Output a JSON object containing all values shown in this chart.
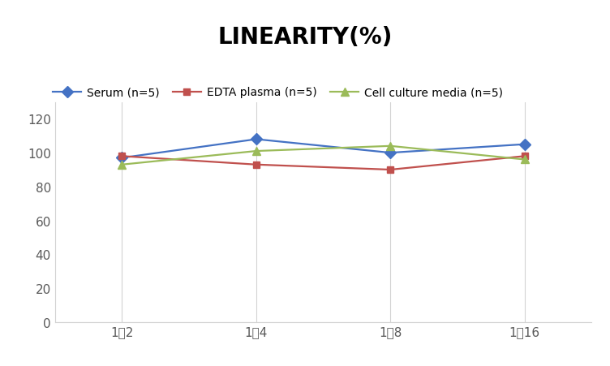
{
  "title": "LINEARITY(%)",
  "title_fontsize": 20,
  "title_fontweight": "bold",
  "x_labels": [
    "1：2",
    "1：4",
    "1：8",
    "1：16"
  ],
  "x_positions": [
    0,
    1,
    2,
    3
  ],
  "series": [
    {
      "label": "Serum (n=5)",
      "values": [
        97,
        108,
        100,
        105
      ],
      "color": "#4472C4",
      "marker": "D",
      "markersize": 7,
      "linewidth": 1.6
    },
    {
      "label": "EDTA plasma (n=5)",
      "values": [
        98,
        93,
        90,
        98
      ],
      "color": "#C0504D",
      "marker": "s",
      "markersize": 6,
      "linewidth": 1.6
    },
    {
      "label": "Cell culture media (n=5)",
      "values": [
        93,
        101,
        104,
        96
      ],
      "color": "#9BBB59",
      "marker": "^",
      "markersize": 7,
      "linewidth": 1.6
    }
  ],
  "ylim": [
    0,
    130
  ],
  "yticks": [
    0,
    20,
    40,
    60,
    80,
    100,
    120
  ],
  "grid_color": "#D3D3D3",
  "background_color": "#FFFFFF",
  "legend_fontsize": 10,
  "tick_fontsize": 11,
  "axis_label_color": "#595959"
}
